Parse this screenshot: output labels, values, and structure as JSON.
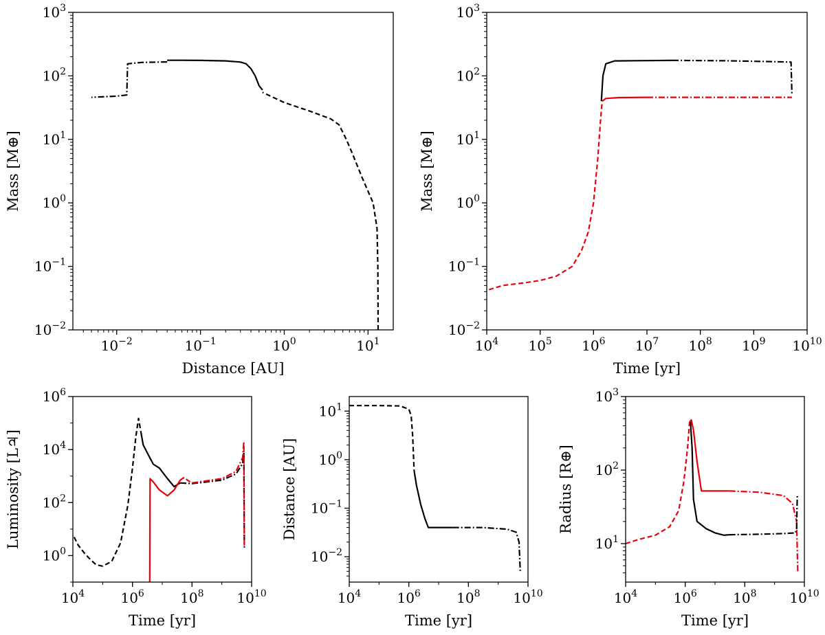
{
  "chart_data": [
    {
      "id": "mass-vs-distance",
      "type": "line",
      "xlabel": "Distance [AU]",
      "ylabel": "Mass [M⊕]",
      "xscale": "log",
      "yscale": "log",
      "xlim": [
        0.003,
        20
      ],
      "ylim": [
        0.01,
        1000
      ],
      "xticks": [
        {
          "v": 0.01,
          "exp": "−2"
        },
        {
          "v": 0.1,
          "exp": "−1"
        },
        {
          "v": 1,
          "exp": "0"
        },
        {
          "v": 10,
          "exp": "1"
        }
      ],
      "yticks": [
        {
          "v": 0.01,
          "exp": "−2"
        },
        {
          "v": 0.1,
          "exp": "−1"
        },
        {
          "v": 1,
          "exp": "0"
        },
        {
          "v": 10,
          "exp": "1"
        },
        {
          "v": 100,
          "exp": "2"
        },
        {
          "v": 1000,
          "exp": "3"
        }
      ],
      "series": [
        {
          "name": "migration-dashed",
          "color": "#000000",
          "style": "dashed",
          "points": [
            [
              13.2,
              0.01
            ],
            [
              13.1,
              0.1
            ],
            [
              12.8,
              0.4
            ],
            [
              11.5,
              1.0
            ],
            [
              8.5,
              2.5
            ],
            [
              6.5,
              6
            ],
            [
              5.5,
              10
            ],
            [
              4.5,
              17
            ],
            [
              3.6,
              21
            ],
            [
              2,
              28
            ],
            [
              1,
              38
            ],
            [
              0.55,
              55
            ]
          ]
        },
        {
          "name": "gas-accretion-solid",
          "color": "#000000",
          "style": "solid",
          "points": [
            [
              0.55,
              60
            ],
            [
              0.5,
              70
            ],
            [
              0.45,
              100
            ],
            [
              0.4,
              130
            ],
            [
              0.35,
              155
            ],
            [
              0.3,
              165
            ],
            [
              0.2,
              172
            ],
            [
              0.1,
              175
            ],
            [
              0.06,
              176
            ],
            [
              0.04,
              176
            ]
          ]
        },
        {
          "name": "evolution-dashdot",
          "color": "#000000",
          "style": "dashdot",
          "points": [
            [
              0.04,
              166
            ],
            [
              0.02,
              163
            ],
            [
              0.0135,
              155
            ],
            [
              0.0132,
              50
            ],
            [
              0.01,
              48
            ],
            [
              0.005,
              46
            ]
          ]
        }
      ]
    },
    {
      "id": "mass-vs-time",
      "type": "line",
      "xlabel": "Time [yr]",
      "ylabel": "Mass [M⊕]",
      "xscale": "log",
      "yscale": "log",
      "xlim": [
        10000,
        10000000000
      ],
      "ylim": [
        0.01,
        1000
      ],
      "xticks": [
        {
          "v": 10000,
          "exp": "4"
        },
        {
          "v": 100000,
          "exp": "5"
        },
        {
          "v": 1000000,
          "exp": "6"
        },
        {
          "v": 10000000,
          "exp": "7"
        },
        {
          "v": 100000000,
          "exp": "8"
        },
        {
          "v": 1000000000,
          "exp": "9"
        },
        {
          "v": 10000000000,
          "exp": "10"
        }
      ],
      "yticks": [
        {
          "v": 0.01,
          "exp": "−2"
        },
        {
          "v": 0.1,
          "exp": "−1"
        },
        {
          "v": 1,
          "exp": "0"
        },
        {
          "v": 10,
          "exp": "1"
        },
        {
          "v": 100,
          "exp": "2"
        },
        {
          "v": 1000,
          "exp": "3"
        }
      ],
      "series": [
        {
          "name": "total-mass-solid",
          "color": "#000000",
          "style": "solid",
          "points": [
            [
              1400000,
              40
            ],
            [
              1500000,
              100
            ],
            [
              1700000,
              155
            ],
            [
              2500000,
              172
            ],
            [
              10000000,
              174
            ],
            [
              30000000,
              175
            ]
          ]
        },
        {
          "name": "total-mass-dashdot",
          "color": "#000000",
          "style": "dashdot",
          "points": [
            [
              30000000,
              175
            ],
            [
              300000000,
              173
            ],
            [
              2000000000,
              168
            ],
            [
              5000000000,
              165
            ],
            [
              5200000000,
              50
            ]
          ]
        },
        {
          "name": "core-mass-dashed",
          "color": "#e8000b",
          "style": "dashed",
          "points": [
            [
              11000,
              0.043
            ],
            [
              20000,
              0.05
            ],
            [
              50000,
              0.055
            ],
            [
              100000,
              0.06
            ],
            [
              200000,
              0.07
            ],
            [
              400000,
              0.1
            ],
            [
              600000,
              0.18
            ],
            [
              800000,
              0.35
            ],
            [
              1000000,
              1.0
            ],
            [
              1200000,
              5
            ],
            [
              1350000,
              20
            ],
            [
              1450000,
              40
            ]
          ]
        },
        {
          "name": "core-mass-solid",
          "color": "#e8000b",
          "style": "solid",
          "points": [
            [
              1450000,
              40
            ],
            [
              1700000,
              44
            ],
            [
              3000000,
              45.5
            ],
            [
              10000000,
              46
            ]
          ]
        },
        {
          "name": "core-mass-dashdot",
          "color": "#e8000b",
          "style": "dashdot",
          "points": [
            [
              10000000,
              46
            ],
            [
              100000000,
              46
            ],
            [
              1000000000,
              46
            ],
            [
              5200000000,
              46
            ]
          ]
        }
      ]
    },
    {
      "id": "luminosity-vs-time",
      "type": "line",
      "xlabel": "Time [yr]",
      "ylabel": "Luminosity [L♃]",
      "xscale": "log",
      "yscale": "log",
      "xlim": [
        10000,
        10000000000
      ],
      "ylim": [
        0.1,
        1000000
      ],
      "xticks": [
        {
          "v": 10000,
          "exp": "4"
        },
        {
          "v": 1000000,
          "exp": "6"
        },
        {
          "v": 100000000,
          "exp": "8"
        },
        {
          "v": 10000000000,
          "exp": "10"
        }
      ],
      "yticks": [
        {
          "v": 1,
          "exp": "0"
        },
        {
          "v": 100,
          "exp": "2"
        },
        {
          "v": 10000,
          "exp": "4"
        },
        {
          "v": 1000000,
          "exp": "6"
        }
      ],
      "series": [
        {
          "name": "lum-dashed",
          "color": "#000000",
          "style": "dashed",
          "points": [
            [
              11000,
              5
            ],
            [
              15000,
              2.5
            ],
            [
              25000,
              1.2
            ],
            [
              35000,
              0.8
            ],
            [
              60000,
              0.45
            ],
            [
              100000,
              0.4
            ],
            [
              200000,
              0.6
            ],
            [
              400000,
              3
            ],
            [
              700000,
              80
            ],
            [
              1000000,
              2000
            ],
            [
              1300000,
              30000
            ],
            [
              1600000,
              150000
            ],
            [
              1900000,
              50000
            ]
          ]
        },
        {
          "name": "lum-solid-black",
          "color": "#000000",
          "style": "solid",
          "points": [
            [
              1900000,
              50000
            ],
            [
              2300000,
              15000
            ],
            [
              3500000,
              6000
            ],
            [
              5000000,
              2800
            ],
            [
              8000000,
              2000
            ],
            [
              15000000,
              800
            ],
            [
              25000000,
              400
            ],
            [
              40000000,
              550
            ]
          ]
        },
        {
          "name": "lum-dashdot-black",
          "color": "#000000",
          "style": "dashdot",
          "points": [
            [
              40000000,
              550
            ],
            [
              100000000,
              520
            ],
            [
              1000000000,
              700
            ],
            [
              3000000000,
              1200
            ],
            [
              5000000000,
              3000
            ],
            [
              5500000000,
              8000
            ],
            [
              5700000000,
              2
            ]
          ]
        },
        {
          "name": "lum-solid-red",
          "color": "#e8000b",
          "style": "solid",
          "points": [
            [
              3800000,
              0.1
            ],
            [
              3900000,
              800
            ],
            [
              5000000,
              600
            ],
            [
              8000000,
              300
            ],
            [
              15000000,
              180
            ],
            [
              25000000,
              300
            ],
            [
              40000000,
              700
            ]
          ]
        },
        {
          "name": "lum-dashed-red",
          "color": "#e8000b",
          "style": "dashed",
          "points": [
            [
              40000000,
              700
            ],
            [
              55000000,
              900
            ],
            [
              70000000,
              700
            ],
            [
              100000000,
              550
            ]
          ]
        },
        {
          "name": "lum-dashdot-red",
          "color": "#e8000b",
          "style": "dashdot",
          "points": [
            [
              100000000,
              550
            ],
            [
              1000000000,
              800
            ],
            [
              3000000000,
              1500
            ],
            [
              5000000000,
              5000
            ],
            [
              5500000000,
              20000
            ],
            [
              5700000000,
              2
            ]
          ]
        }
      ]
    },
    {
      "id": "distance-vs-time",
      "type": "line",
      "xlabel": "Time [yr]",
      "ylabel": "Distance [AU]",
      "xscale": "log",
      "yscale": "log",
      "xlim": [
        10000,
        10000000000
      ],
      "ylim": [
        0.003,
        20
      ],
      "xticks": [
        {
          "v": 10000,
          "exp": "4"
        },
        {
          "v": 1000000,
          "exp": "6"
        },
        {
          "v": 100000000,
          "exp": "8"
        },
        {
          "v": 10000000000,
          "exp": "10"
        }
      ],
      "yticks": [
        {
          "v": 0.01,
          "exp": "−2"
        },
        {
          "v": 0.1,
          "exp": "−1"
        },
        {
          "v": 1,
          "exp": "0"
        },
        {
          "v": 10,
          "exp": "1"
        }
      ],
      "series": [
        {
          "name": "dist-dashed",
          "color": "#000000",
          "style": "dashed",
          "points": [
            [
              10000,
              13
            ],
            [
              100000,
              13
            ],
            [
              500000,
              12.8
            ],
            [
              1000000,
              11
            ],
            [
              1200000,
              8
            ],
            [
              1350000,
              3
            ],
            [
              1500000,
              0.6
            ]
          ]
        },
        {
          "name": "dist-solid",
          "color": "#000000",
          "style": "solid",
          "points": [
            [
              1500000,
              0.6
            ],
            [
              1800000,
              0.3
            ],
            [
              2500000,
              0.12
            ],
            [
              3500000,
              0.06
            ],
            [
              4500000,
              0.04
            ],
            [
              30000000,
              0.04
            ]
          ]
        },
        {
          "name": "dist-dashdot",
          "color": "#000000",
          "style": "dashdot",
          "points": [
            [
              30000000,
              0.04
            ],
            [
              300000000,
              0.04
            ],
            [
              2000000000,
              0.037
            ],
            [
              4000000000,
              0.032
            ],
            [
              5000000000,
              0.02
            ],
            [
              5500000000,
              0.005
            ]
          ]
        }
      ]
    },
    {
      "id": "radius-vs-time",
      "type": "line",
      "xlabel": "Time [yr]",
      "ylabel": "Radius [R⊕]",
      "xscale": "log",
      "yscale": "log",
      "xlim": [
        10000,
        10000000000
      ],
      "ylim": [
        3,
        1000
      ],
      "xticks": [
        {
          "v": 10000,
          "exp": "4"
        },
        {
          "v": 1000000,
          "exp": "6"
        },
        {
          "v": 100000000,
          "exp": "8"
        },
        {
          "v": 10000000000,
          "exp": "10"
        }
      ],
      "yticks": [
        {
          "v": 10,
          "exp": "1"
        },
        {
          "v": 100,
          "exp": "2"
        },
        {
          "v": 1000,
          "exp": "3"
        }
      ],
      "series": [
        {
          "name": "radius-dashed-red",
          "color": "#e8000b",
          "style": "dashed",
          "points": [
            [
              10000,
              10
            ],
            [
              30000,
              11.5
            ],
            [
              100000,
              13
            ],
            [
              300000,
              17
            ],
            [
              600000,
              28
            ],
            [
              900000,
              70
            ],
            [
              1200000,
              200
            ],
            [
              1400000,
              450
            ]
          ]
        },
        {
          "name": "radius-solid-red",
          "color": "#e8000b",
          "style": "solid",
          "points": [
            [
              1400000,
              450
            ],
            [
              1600000,
              480
            ],
            [
              1900000,
              350
            ],
            [
              2500000,
              130
            ],
            [
              3500000,
              52
            ],
            [
              30000000,
              52
            ]
          ]
        },
        {
          "name": "radius-dashdot-red",
          "color": "#e8000b",
          "style": "dashdot",
          "points": [
            [
              30000000,
              52
            ],
            [
              300000000,
              50
            ],
            [
              2000000000,
              45
            ],
            [
              4000000000,
              35
            ],
            [
              5500000000,
              20
            ],
            [
              6000000000,
              4
            ]
          ]
        },
        {
          "name": "radius-solid-black",
          "color": "#000000",
          "style": "solid",
          "points": [
            [
              1500000,
              450
            ],
            [
              1700000,
              200
            ],
            [
              1900000,
              40
            ],
            [
              2500000,
              20
            ],
            [
              5000000,
              16
            ],
            [
              10000000,
              14
            ],
            [
              20000000,
              13
            ],
            [
              30000000,
              13.2
            ]
          ]
        },
        {
          "name": "radius-dashdot-black",
          "color": "#000000",
          "style": "dashdot",
          "points": [
            [
              30000000,
              13.2
            ],
            [
              300000000,
              13.4
            ],
            [
              2000000000,
              13.7
            ],
            [
              5000000000,
              14
            ],
            [
              5500000000,
              16
            ],
            [
              5800000000,
              45
            ]
          ]
        }
      ]
    }
  ]
}
